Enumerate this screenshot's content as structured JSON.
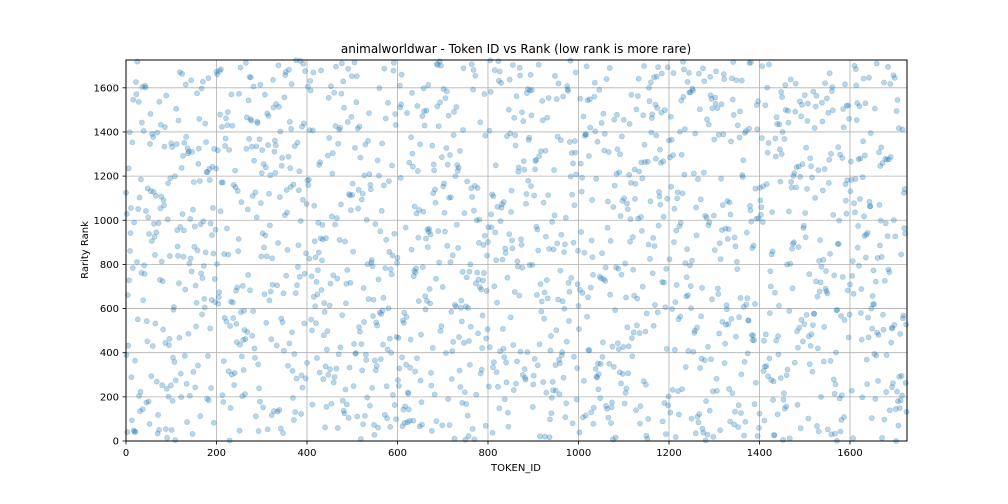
{
  "chart_data": {
    "type": "scatter",
    "title": "animalworldwar - Token ID vs Rank (low rank is more rare)",
    "xlabel": "TOKEN_ID",
    "ylabel": "Rarity Rank",
    "xlim": [
      0,
      1726
    ],
    "ylim": [
      0,
      1726
    ],
    "xticks": [
      0,
      200,
      400,
      600,
      800,
      1000,
      1200,
      1400,
      1600
    ],
    "yticks": [
      0,
      200,
      400,
      600,
      800,
      1000,
      1200,
      1400,
      1600
    ],
    "grid": true,
    "point_color": "#1f77b4",
    "point_opacity": 0.3,
    "n_points": 1726,
    "seed": 20231
  }
}
